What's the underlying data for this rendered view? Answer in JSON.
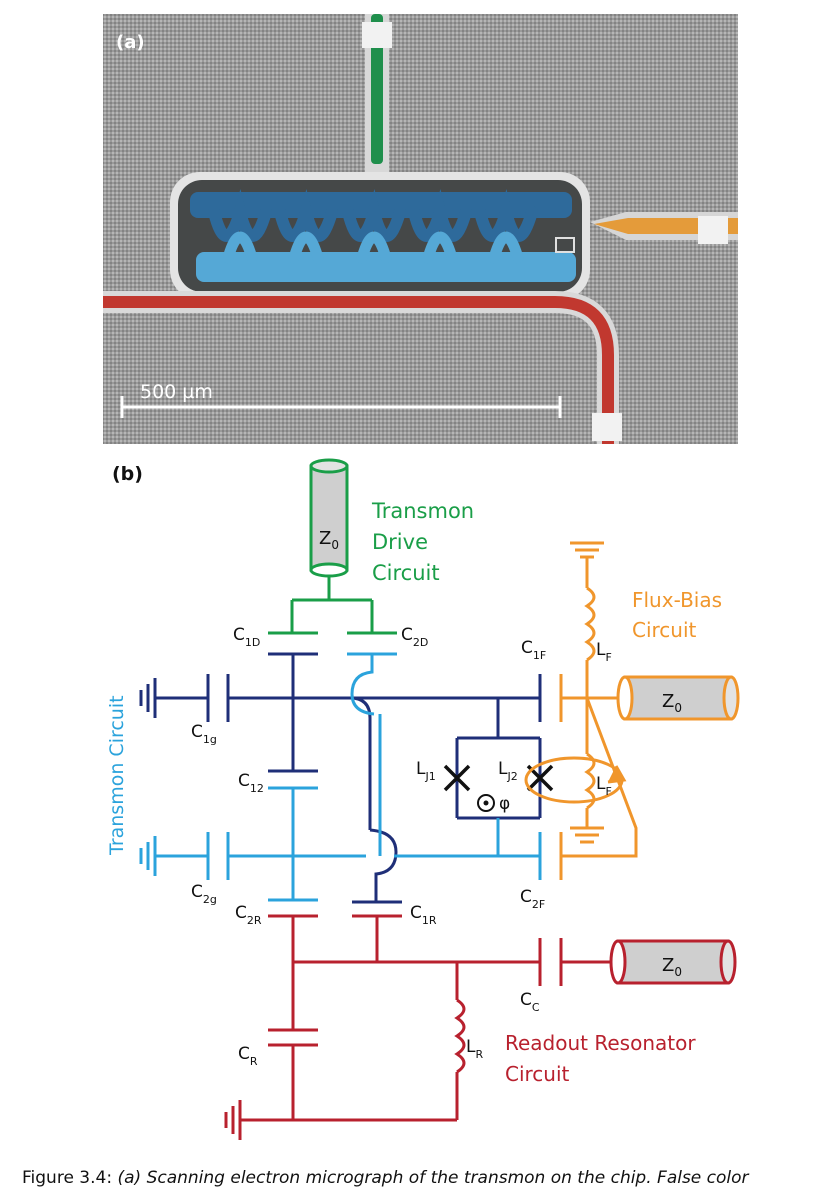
{
  "panel_a": {
    "label": "(a)",
    "scale_bar": "500 µm"
  },
  "panel_b": {
    "label": "(b)",
    "z0": "Z",
    "z0_sub": "0",
    "drive_title": [
      "Transmon",
      "Drive",
      "Circuit"
    ],
    "flux_title": [
      "Flux-Bias",
      "Circuit"
    ],
    "transmon_title": "Transmon Circuit",
    "readout_title": [
      "Readout Resonator",
      "Circuit"
    ],
    "phi_label": "φ",
    "components": {
      "C1D": [
        "C",
        "1D"
      ],
      "C2D": [
        "C",
        "2D"
      ],
      "C1F": [
        "C",
        "1F"
      ],
      "LF1": [
        "L",
        "F"
      ],
      "C1g": [
        "C",
        "1g"
      ],
      "C12": [
        "C",
        "12"
      ],
      "LJ1": [
        "L",
        "J1"
      ],
      "LJ2": [
        "L",
        "J2"
      ],
      "LF2": [
        "L",
        "F"
      ],
      "C2g": [
        "C",
        "2g"
      ],
      "C2R": [
        "C",
        "2R"
      ],
      "C1R": [
        "C",
        "1R"
      ],
      "C2F": [
        "C",
        "2F"
      ],
      "CC": [
        "C",
        "C"
      ],
      "CR": [
        "C",
        "R"
      ],
      "LR": [
        "L",
        "R"
      ]
    }
  },
  "colors": {
    "green": "#1a9e48",
    "navy": "#1f2f78",
    "light_blue": "#2ba3dc",
    "orange": "#f0962c",
    "red": "#b8212e"
  },
  "caption": {
    "prefix": "Figure 3.4: ",
    "text": "(a) Scanning electron micrograph of the transmon on the chip. False color"
  }
}
